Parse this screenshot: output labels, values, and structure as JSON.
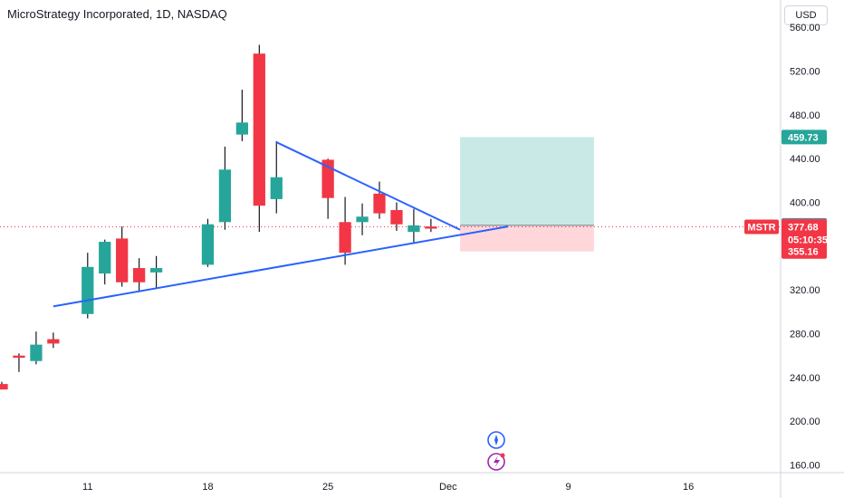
{
  "chart_data": {
    "type": "candlestick",
    "title": "MicroStrategy Incorporated, 1D, NASDAQ",
    "symbol": "MSTR",
    "currency": "USD",
    "y_ticks": [
      "560.00",
      "520.00",
      "480.00",
      "440.00",
      "400.00",
      "360.00",
      "320.00",
      "280.00",
      "240.00",
      "200.00",
      "160.00"
    ],
    "y_tick_values": [
      560,
      520,
      480,
      440,
      400,
      360,
      320,
      280,
      240,
      200,
      160
    ],
    "ylim": [
      153,
      585
    ],
    "x_ticks": [
      {
        "label": "11",
        "day": 11
      },
      {
        "label": "18",
        "day": 18
      },
      {
        "label": "25",
        "day": 25
      },
      {
        "label": "Dec",
        "day": 32
      },
      {
        "label": "9",
        "day": 39
      },
      {
        "label": "16",
        "day": 46
      }
    ],
    "x_range_days": [
      6,
      50
    ],
    "candles": [
      {
        "day": 6,
        "o": 234,
        "h": 236,
        "l": 229,
        "c": 229
      },
      {
        "day": 7,
        "o": 260,
        "h": 262,
        "l": 245,
        "c": 258
      },
      {
        "day": 8,
        "o": 255,
        "h": 282,
        "l": 252,
        "c": 270
      },
      {
        "day": 9,
        "o": 275,
        "h": 281,
        "l": 267,
        "c": 271
      },
      {
        "day": 11,
        "o": 298,
        "h": 354,
        "l": 294,
        "c": 341
      },
      {
        "day": 12,
        "o": 335,
        "h": 366,
        "l": 325,
        "c": 364
      },
      {
        "day": 13,
        "o": 367,
        "h": 378,
        "l": 323,
        "c": 327
      },
      {
        "day": 14,
        "o": 340,
        "h": 349,
        "l": 318,
        "c": 327
      },
      {
        "day": 15,
        "o": 336,
        "h": 351,
        "l": 322,
        "c": 340
      },
      {
        "day": 18,
        "o": 343,
        "h": 385,
        "l": 341,
        "c": 380
      },
      {
        "day": 19,
        "o": 382,
        "h": 451,
        "l": 375,
        "c": 430
      },
      {
        "day": 20,
        "o": 462,
        "h": 503,
        "l": 456,
        "c": 473
      },
      {
        "day": 21,
        "o": 536,
        "h": 544,
        "l": 373,
        "c": 397
      },
      {
        "day": 22,
        "o": 403,
        "h": 456,
        "l": 390,
        "c": 423
      },
      {
        "day": 25,
        "o": 439,
        "h": 440,
        "l": 385,
        "c": 404
      },
      {
        "day": 26,
        "o": 382,
        "h": 405,
        "l": 343,
        "c": 354
      },
      {
        "day": 27,
        "o": 382,
        "h": 399,
        "l": 370,
        "c": 387
      },
      {
        "day": 28,
        "o": 408,
        "h": 419,
        "l": 385,
        "c": 390
      },
      {
        "day": 29,
        "o": 393,
        "h": 400,
        "l": 374,
        "c": 380
      },
      {
        "day": 30,
        "o": 373,
        "h": 394,
        "l": 362,
        "c": 379
      },
      {
        "day": 31,
        "o": 378,
        "h": 385,
        "l": 373,
        "c": 376
      }
    ],
    "trendlines": [
      {
        "name": "upper-trendline",
        "from": {
          "day": 22,
          "value": 455
        },
        "to": {
          "day": 32.7,
          "value": 375
        }
      },
      {
        "name": "lower-trendline",
        "from": {
          "day": 9,
          "value": 305
        },
        "to": {
          "day": 35.5,
          "value": 378
        }
      }
    ],
    "position_tool": {
      "start_day": 32.7,
      "end_day": 40.5,
      "entry": 379.04,
      "target": 459.73,
      "stop": 355.16
    },
    "current_price": 377.68,
    "countdown": "05:10:35",
    "price_labels": {
      "target": "459.73",
      "entry": "379.04",
      "current": "377.68",
      "stop": "355.16"
    },
    "colors": {
      "up": "#26a69a",
      "down": "#f23645",
      "trendline": "#2962ff",
      "target_zone": "#b2dfdb",
      "stop_zone": "#ffcdd2",
      "entry_tag": "#787b86"
    }
  }
}
